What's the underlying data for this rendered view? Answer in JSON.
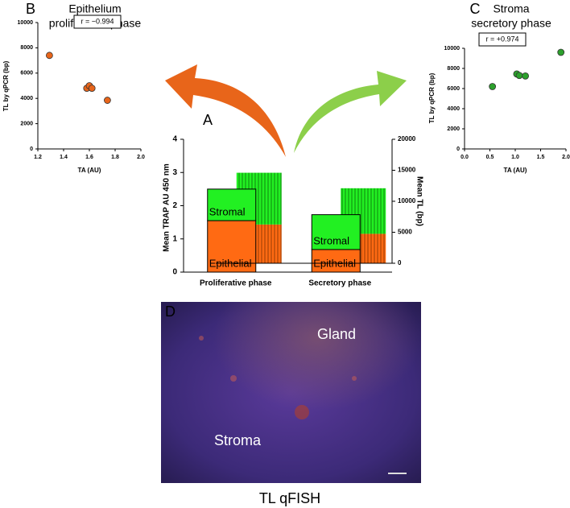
{
  "chart_data": [
    {
      "type": "scatter",
      "label": "B",
      "title": [
        "Epithelium",
        "proliferative phase"
      ],
      "annotation": "r = −0.994",
      "x_label": "TA (AU)",
      "y_label": "TL by qPCR (bp)",
      "color": "#e8651a",
      "x": [
        1.29,
        1.58,
        1.6,
        1.62,
        1.74
      ],
      "values": [
        7400,
        4800,
        5000,
        4800,
        3850
      ],
      "xlim": [
        1.2,
        2.0
      ],
      "xticks": [
        1.2,
        1.4,
        1.6,
        1.8,
        {
          "value": 2,
          "label": "2.0"
        }
      ],
      "ylim": [
        0,
        10000
      ],
      "yticks": [
        0,
        2000,
        4000,
        6000,
        8000,
        10000
      ]
    },
    {
      "type": "bar",
      "label": "A",
      "y_label": "Mean TRAP AU 450 nm",
      "y2_label": "Mean TL (bp)",
      "categories": [
        "Proliferative phase",
        "Secretory phase"
      ],
      "series": [
        {
          "name": "Epithelial",
          "color": "#ff6a13",
          "values": [
            1.55,
            0.68
          ]
        },
        {
          "name": "Stromal",
          "color": "#22f022",
          "values": [
            0.95,
            1.05
          ]
        },
        {
          "color": "#ff6a13",
          "values": [
            6250,
            4750
          ],
          "axis": "y2"
        },
        {
          "color": "#22f022",
          "values": [
            8350,
            7350
          ],
          "axis": "y2"
        }
      ],
      "ylim": [
        0,
        4
      ],
      "yticks": [
        0,
        1,
        2,
        3,
        4
      ],
      "y2lim": [
        0,
        20000
      ],
      "y2ticks": [
        0,
        5000,
        10000,
        15000,
        20000
      ]
    },
    {
      "type": "scatter",
      "label": "C",
      "title": [
        "Stroma",
        "secretory phase"
      ],
      "annotation": "r = +0.974",
      "x_label": "TA (AU)",
      "y_label": "TL by qPCR (bp)",
      "color": "#2ca02c",
      "x": [
        0.55,
        1.03,
        1.08,
        1.2,
        1.9
      ],
      "values": [
        6200,
        7450,
        7300,
        7250,
        9600
      ],
      "xlim": [
        0,
        2
      ],
      "xticks": [
        {
          "value": 0,
          "label": "0.0"
        },
        0.5,
        {
          "value": 1,
          "label": "1.0"
        },
        1.5,
        {
          "value": 2,
          "label": "2.0"
        }
      ],
      "ylim": [
        0,
        10000
      ],
      "yticks": [
        0,
        2000,
        4000,
        6000,
        8000,
        10000
      ]
    }
  ],
  "figure_d": {
    "label": "D",
    "regions": [
      "Gland",
      "Stroma"
    ],
    "caption": "TL qFISH"
  }
}
